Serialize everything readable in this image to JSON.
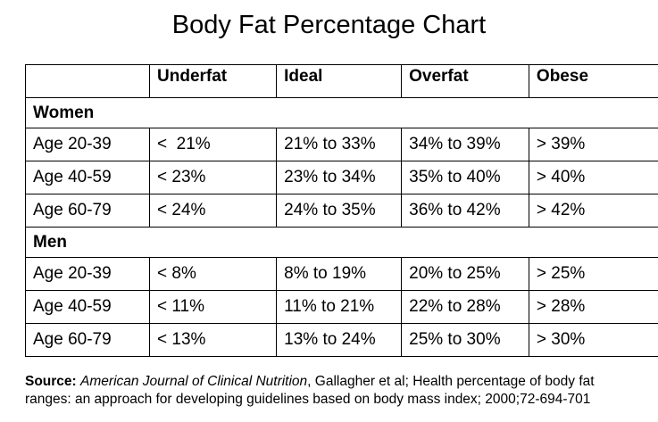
{
  "title": "Body Fat Percentage Chart",
  "headers": [
    "",
    "Underfat",
    "Ideal",
    "Overfat",
    "Obese"
  ],
  "groups": [
    {
      "name": "Women",
      "rows": [
        {
          "age": "Age 20-39",
          "underfat": "<  21%",
          "ideal": "21% to 33%",
          "overfat": "34% to 39%",
          "obese": "> 39%"
        },
        {
          "age": "Age 40-59",
          "underfat": "< 23%",
          "ideal": "23% to 34%",
          "overfat": "35% to 40%",
          "obese": "> 40%"
        },
        {
          "age": "Age 60-79",
          "underfat": "< 24%",
          "ideal": "24% to 35%",
          "overfat": "36% to 42%",
          "obese": "> 42%"
        }
      ]
    },
    {
      "name": "Men",
      "rows": [
        {
          "age": "Age 20-39",
          "underfat": "< 8%",
          "ideal": "8% to 19%",
          "overfat": "20% to 25%",
          "obese": "> 25%"
        },
        {
          "age": "Age 40-59",
          "underfat": "< 11%",
          "ideal": "11% to 21%",
          "overfat": "22% to 28%",
          "obese": "> 28%"
        },
        {
          "age": "Age 60-79",
          "underfat": "< 13%",
          "ideal": "13% to 24%",
          "overfat": "25% to 30%",
          "obese": "> 30%"
        }
      ]
    }
  ],
  "source": {
    "label": "Source:",
    "journal": "American Journal of Clinical Nutrition",
    "line1_rest": ", Gallagher et al; Health percentage of body fat",
    "line2": "ranges: an approach for developing guidelines based on body mass index; 2000;72-694-701"
  }
}
